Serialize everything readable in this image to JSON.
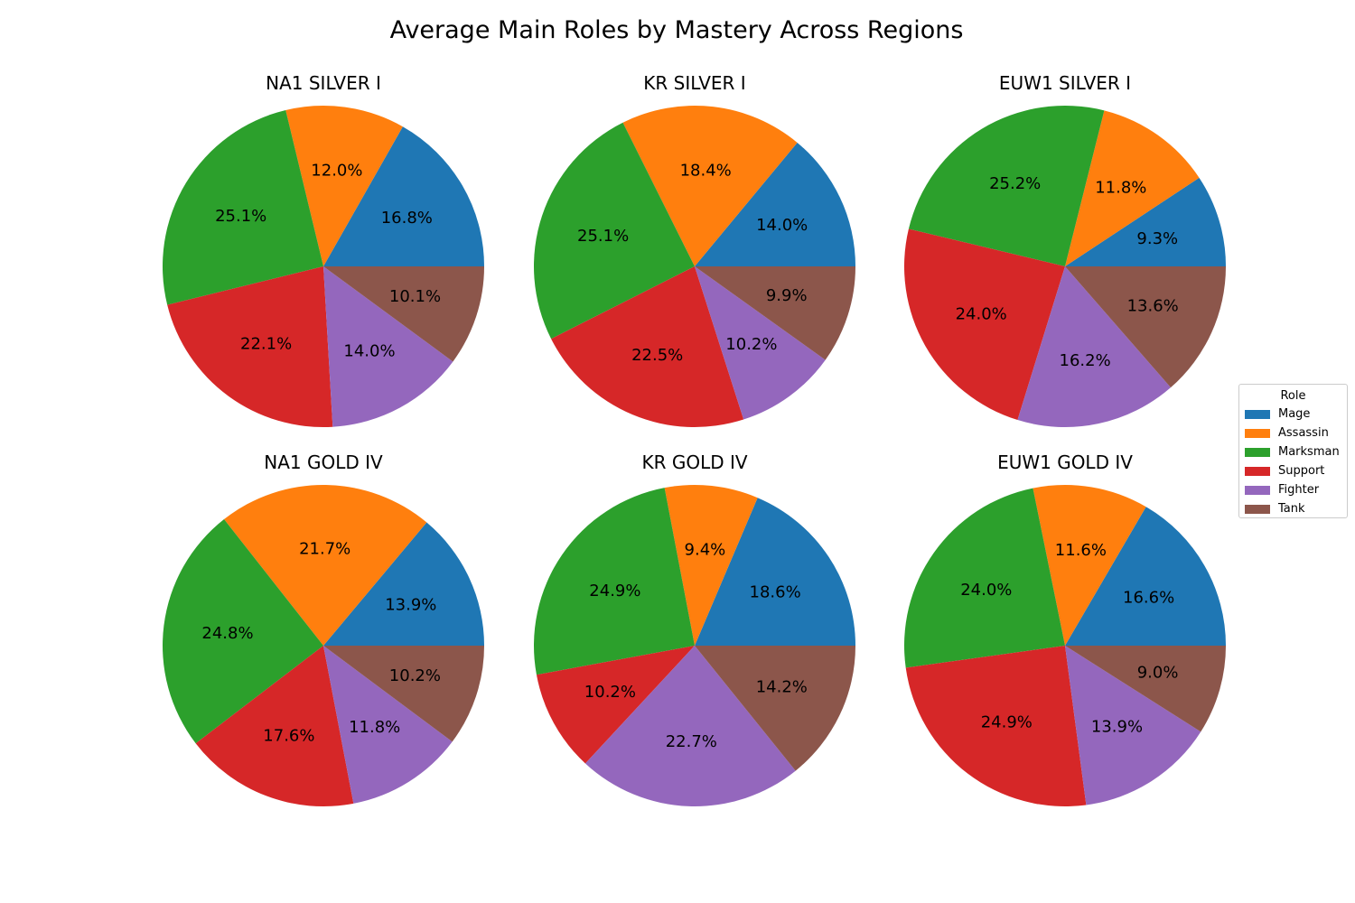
{
  "chart_data": {
    "type": "pie",
    "title": "Average Main Roles by Mastery Across Regions",
    "legend": {
      "title": "Role",
      "placement": "center-right",
      "entries": [
        "Mage",
        "Assassin",
        "Marksman",
        "Support",
        "Fighter",
        "Tank"
      ]
    },
    "colors": {
      "Mage": "#1f77b4",
      "Assassin": "#ff7f0e",
      "Marksman": "#2ca02c",
      "Support": "#d62728",
      "Fighter": "#9467bd",
      "Tank": "#8c564b"
    },
    "charts": [
      {
        "title": "NA1 SILVER I",
        "values": [
          16.8,
          12.0,
          25.1,
          22.1,
          14.0,
          10.1
        ]
      },
      {
        "title": "KR SILVER I",
        "values": [
          14.0,
          18.4,
          25.1,
          22.5,
          10.2,
          9.9
        ]
      },
      {
        "title": "EUW1 SILVER I",
        "values": [
          9.3,
          11.8,
          25.2,
          24.0,
          16.2,
          13.6
        ]
      },
      {
        "title": "NA1 GOLD IV",
        "values": [
          13.9,
          21.7,
          24.8,
          17.6,
          11.8,
          10.2
        ]
      },
      {
        "title": "KR GOLD IV",
        "values": [
          18.6,
          9.4,
          24.9,
          10.2,
          22.7,
          14.2
        ]
      },
      {
        "title": "EUW1 GOLD IV",
        "values": [
          16.6,
          11.6,
          24.0,
          24.9,
          13.9,
          9.0
        ]
      }
    ]
  }
}
